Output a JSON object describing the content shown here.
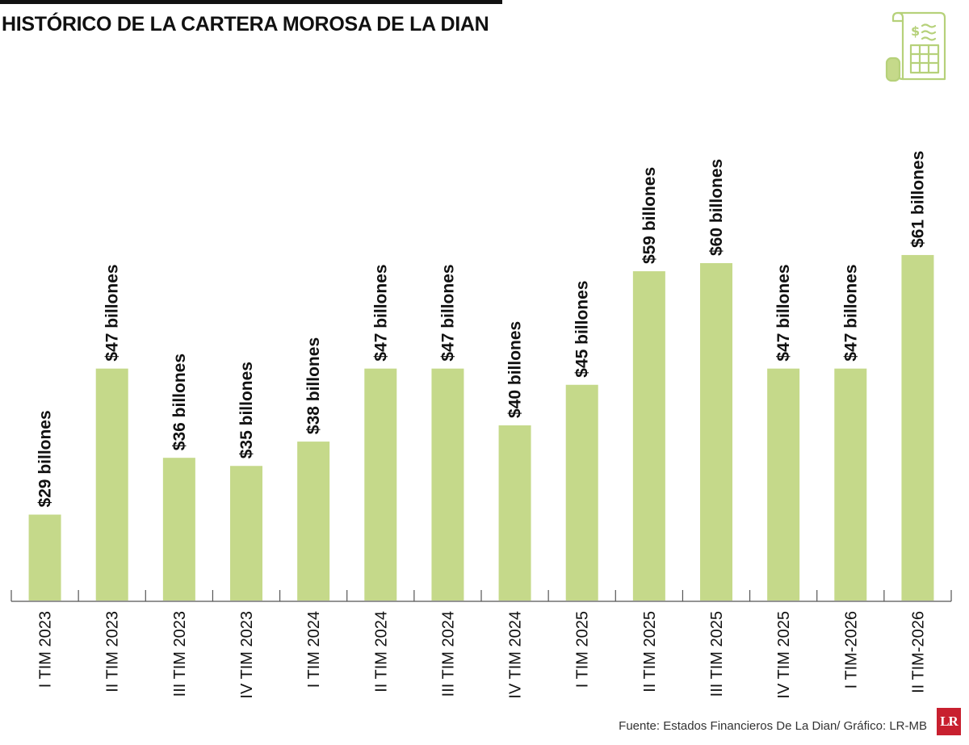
{
  "header": {
    "title": "HISTÓRICO DE LA CARTERA MOROSA DE LA DIAN"
  },
  "colors": {
    "bar": "#c5d98a",
    "axis": "#555555",
    "text": "#111111",
    "icon": "#b6d17a",
    "brand": "#c8202f"
  },
  "icon_name": "document-spreadsheet-icon",
  "chart_data": {
    "type": "bar",
    "title": "HISTÓRICO DE LA CARTERA MOROSA DE LA DIAN",
    "xlabel": "",
    "ylabel": "",
    "ylim": [
      0,
      64
    ],
    "grid": false,
    "legend": "none",
    "categories": [
      "I TIM 2023",
      "II TIM 2023",
      "III TIM 2023",
      "IV TIM 2023",
      "I TIM 2024",
      "II TIM 2024",
      "III TIM 2024",
      "IV TIM 2024",
      "I TIM 2025",
      "II TIM 2025",
      "III TIM 2025",
      "IV TIM 2025",
      "I TIM-2026",
      "II TIM-2026"
    ],
    "values": [
      29,
      47,
      36,
      35,
      38,
      47,
      47,
      40,
      45,
      59,
      60,
      47,
      47,
      61
    ],
    "data_labels": [
      "$29 billones",
      "$47 billones",
      "$36 billones",
      "$35 billones",
      "$38 billones",
      "$47 billones",
      "$47 billones",
      "$40 billones",
      "$45 billones",
      "$59 billones",
      "$60 billones",
      "$47 billones",
      "$47 billones",
      "$61 billones"
    ]
  },
  "footer": {
    "source": "Fuente: Estados Financieros De La Dian/ Gráfico: LR-MB",
    "logo": "LR"
  }
}
